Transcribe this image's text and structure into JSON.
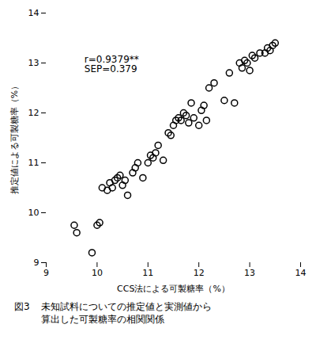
{
  "chart_data": {
    "type": "scatter",
    "x": [
      9.55,
      9.6,
      9.9,
      10.0,
      10.05,
      10.1,
      10.2,
      10.25,
      10.3,
      10.35,
      10.4,
      10.45,
      10.5,
      10.55,
      10.6,
      10.7,
      10.75,
      10.8,
      10.9,
      11.0,
      11.05,
      11.1,
      11.15,
      11.2,
      11.3,
      11.4,
      11.45,
      11.5,
      11.55,
      11.6,
      11.65,
      11.7,
      11.75,
      11.8,
      11.85,
      11.9,
      12.0,
      12.05,
      12.1,
      12.15,
      12.2,
      12.3,
      12.5,
      12.6,
      12.7,
      12.8,
      12.85,
      12.9,
      12.95,
      13.0,
      13.05,
      13.1,
      13.2,
      13.3,
      13.35,
      13.4,
      13.45,
      13.5
    ],
    "values": [
      9.75,
      9.6,
      9.2,
      9.75,
      9.8,
      10.5,
      10.45,
      10.6,
      10.5,
      10.65,
      10.7,
      10.75,
      10.55,
      10.65,
      10.35,
      10.8,
      10.9,
      11.0,
      10.7,
      11.0,
      11.15,
      11.1,
      11.2,
      11.35,
      11.05,
      11.6,
      11.55,
      11.75,
      11.85,
      11.9,
      11.85,
      12.0,
      11.95,
      11.8,
      12.2,
      11.9,
      11.75,
      12.05,
      12.15,
      11.85,
      12.5,
      12.6,
      12.25,
      12.8,
      12.2,
      13.0,
      12.9,
      13.05,
      13.0,
      12.85,
      13.15,
      13.1,
      13.2,
      13.2,
      13.3,
      13.25,
      13.35,
      13.4
    ],
    "color": "#000000",
    "xlabel": "CCS法による可製糖率（%）",
    "ylabel": "推定値による可製糖率（%）",
    "xlim": [
      9,
      14
    ],
    "ylim": [
      9,
      14
    ],
    "xticks": [
      9,
      10,
      11,
      12,
      13,
      14
    ],
    "yticks": [
      9,
      10,
      11,
      12,
      13,
      14
    ],
    "grid": false,
    "annotations": [
      {
        "x": 9.75,
        "y": 13.15,
        "text": "r=0.9379**\nSEP=0.379"
      }
    ],
    "caption": [
      "図3",
      "未知試料についての推定値と実測値から",
      "算出した可製糖率の相関関係"
    ]
  }
}
